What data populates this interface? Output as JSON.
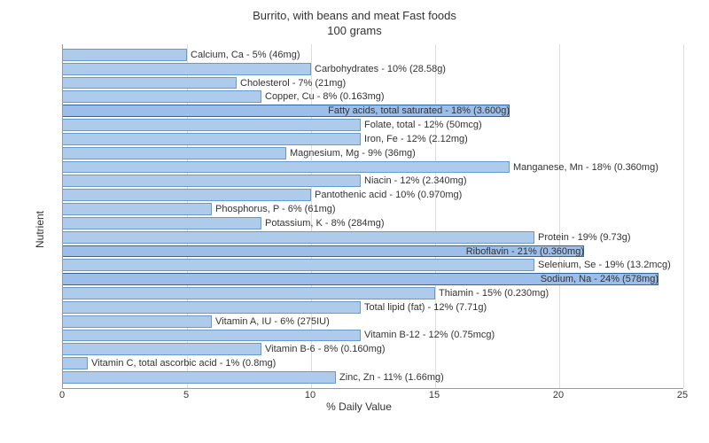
{
  "chart": {
    "type": "bar-horizontal",
    "title_line1": "Burrito, with beans and meat Fast foods",
    "title_line2": "100 grams",
    "y_axis_label": "Nutrient",
    "x_axis_label": "% Daily Value",
    "x_min": 0,
    "x_max": 25,
    "x_tick_step": 5,
    "x_ticks": [
      0,
      5,
      10,
      15,
      20,
      25
    ],
    "bar_fill": "#aecbeb",
    "bar_border": "#6699cc",
    "highlight_fill": "#9dbee9",
    "highlight_border": "#336699",
    "grid_color": "#dddddd",
    "axis_color": "#999999",
    "background_color": "#ffffff",
    "text_color": "#333333",
    "title_fontsize": 13,
    "label_fontsize": 11,
    "axis_title_fontsize": 12,
    "nutrients": [
      {
        "label": "Calcium, Ca - 5% (46mg)",
        "value": 5,
        "highlight": false
      },
      {
        "label": "Carbohydrates - 10% (28.58g)",
        "value": 10,
        "highlight": false
      },
      {
        "label": "Cholesterol - 7% (21mg)",
        "value": 7,
        "highlight": false
      },
      {
        "label": "Copper, Cu - 8% (0.163mg)",
        "value": 8,
        "highlight": false
      },
      {
        "label": "Fatty acids, total saturated - 18% (3.600g)",
        "value": 18,
        "highlight": true
      },
      {
        "label": "Folate, total - 12% (50mcg)",
        "value": 12,
        "highlight": false
      },
      {
        "label": "Iron, Fe - 12% (2.12mg)",
        "value": 12,
        "highlight": false
      },
      {
        "label": "Magnesium, Mg - 9% (36mg)",
        "value": 9,
        "highlight": false
      },
      {
        "label": "Manganese, Mn - 18% (0.360mg)",
        "value": 18,
        "highlight": false
      },
      {
        "label": "Niacin - 12% (2.340mg)",
        "value": 12,
        "highlight": false
      },
      {
        "label": "Pantothenic acid - 10% (0.970mg)",
        "value": 10,
        "highlight": false
      },
      {
        "label": "Phosphorus, P - 6% (61mg)",
        "value": 6,
        "highlight": false
      },
      {
        "label": "Potassium, K - 8% (284mg)",
        "value": 8,
        "highlight": false
      },
      {
        "label": "Protein - 19% (9.73g)",
        "value": 19,
        "highlight": false
      },
      {
        "label": "Riboflavin - 21% (0.360mg)",
        "value": 21,
        "highlight": true
      },
      {
        "label": "Selenium, Se - 19% (13.2mcg)",
        "value": 19,
        "highlight": false
      },
      {
        "label": "Sodium, Na - 24% (578mg)",
        "value": 24,
        "highlight": true
      },
      {
        "label": "Thiamin - 15% (0.230mg)",
        "value": 15,
        "highlight": false
      },
      {
        "label": "Total lipid (fat) - 12% (7.71g)",
        "value": 12,
        "highlight": false
      },
      {
        "label": "Vitamin A, IU - 6% (275IU)",
        "value": 6,
        "highlight": false
      },
      {
        "label": "Vitamin B-12 - 12% (0.75mcg)",
        "value": 12,
        "highlight": false
      },
      {
        "label": "Vitamin B-6 - 8% (0.160mg)",
        "value": 8,
        "highlight": false
      },
      {
        "label": "Vitamin C, total ascorbic acid - 1% (0.8mg)",
        "value": 1,
        "highlight": false
      },
      {
        "label": "Zinc, Zn - 11% (1.66mg)",
        "value": 11,
        "highlight": false
      }
    ]
  }
}
